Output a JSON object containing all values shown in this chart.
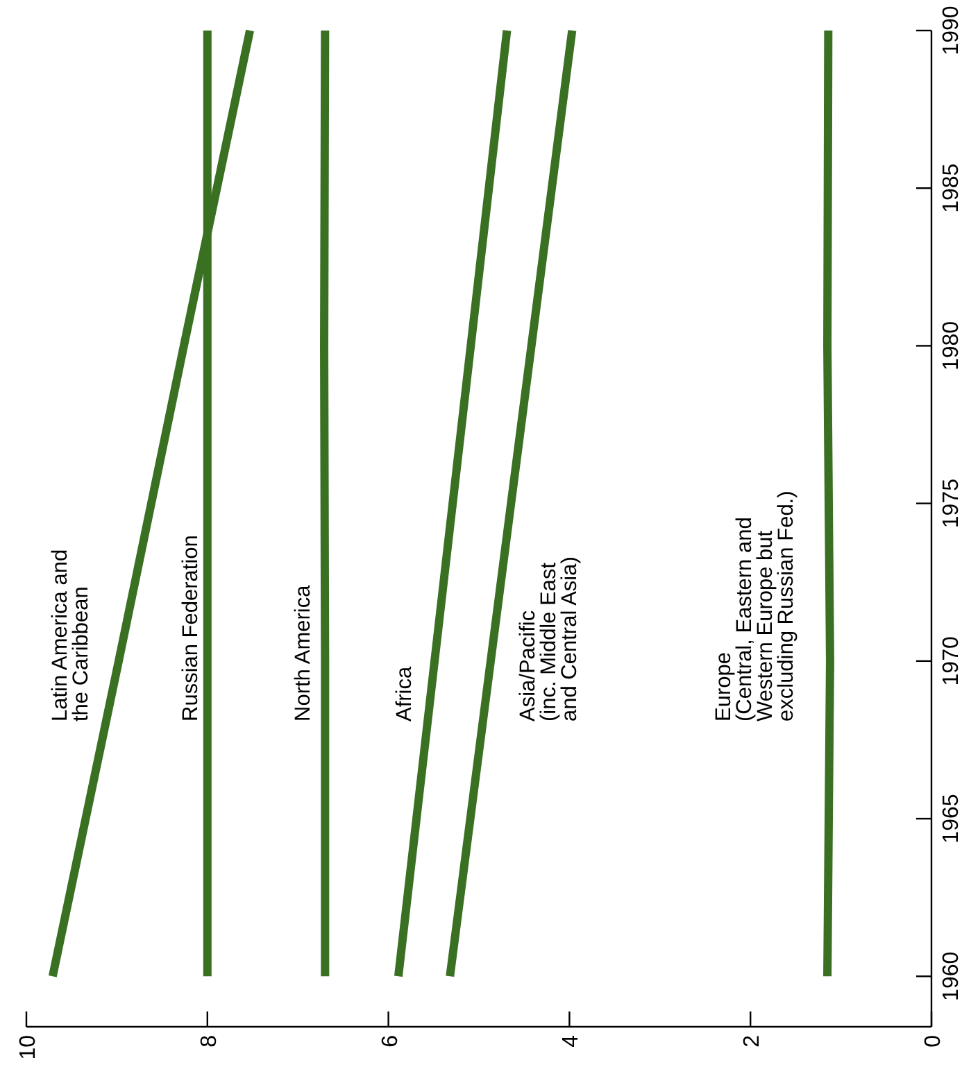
{
  "chart_data": {
    "type": "line",
    "xlim": [
      10,
      0
    ],
    "xticks": [
      0,
      2,
      4,
      6,
      8,
      10
    ],
    "ylim": [
      1958.4,
      1990
    ],
    "yticks": [
      1960,
      1965,
      1970,
      1975,
      1980,
      1985,
      1990
    ],
    "grid": false,
    "legend": false,
    "marker": "none",
    "line_style": "solid",
    "series": [
      {
        "name": "Latin America and\nthe Caribbean",
        "color": "#3a7022",
        "x": [
          9.71,
          8.98,
          8.26,
          7.53
        ],
        "values": [
          1960,
          1970,
          1980,
          1990
        ]
      },
      {
        "name": "Russian Federation",
        "color": "#3a7022",
        "x": [
          8.0,
          8.0,
          8.0,
          8.0
        ],
        "values": [
          1960,
          1970,
          1980,
          1990
        ]
      },
      {
        "name": "North America",
        "color": "#3a7022",
        "x": [
          6.7,
          6.7,
          6.71,
          6.7
        ],
        "values": [
          1960,
          1970,
          1980,
          1990
        ]
      },
      {
        "name": "Africa",
        "color": "#3a7022",
        "x": [
          5.89,
          5.49,
          5.09,
          4.69
        ],
        "values": [
          1960,
          1970,
          1980,
          1990
        ]
      },
      {
        "name": "Asia/Pacific\n(inc. Middle East\nand Central Asia)",
        "color": "#3a7022",
        "x": [
          5.32,
          4.87,
          4.42,
          3.97
        ],
        "values": [
          1960,
          1970,
          1980,
          1990
        ]
      },
      {
        "name": "Europe\n(Central, Eastern and\nWestern Europe but\nexcluding Russian Fed.)",
        "color": "#3a7022",
        "x": [
          1.15,
          1.12,
          1.15,
          1.14
        ],
        "values": [
          1960,
          1970,
          1980,
          1990
        ]
      }
    ]
  }
}
